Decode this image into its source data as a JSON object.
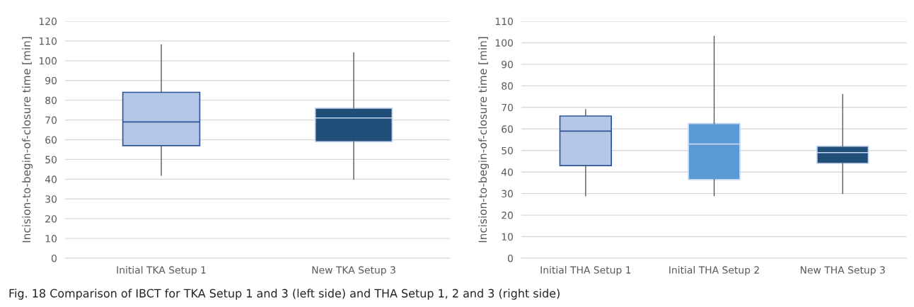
{
  "chart_data": [
    {
      "type": "box",
      "categories": [
        "Initial TKA Setup 1",
        "New TKA Setup 3"
      ],
      "ylabel": "Incision-to-begin-of-closure time [min]",
      "ylim": [
        0,
        120
      ],
      "yticks": [
        0,
        10,
        20,
        30,
        40,
        50,
        60,
        70,
        80,
        90,
        100,
        110,
        120
      ],
      "grid": "y",
      "colors": [
        "#b4c7e7",
        "#1f4e79"
      ],
      "boxes": [
        {
          "low": 42,
          "q1": 57,
          "median": 69,
          "q3": 84,
          "high": 108
        },
        {
          "low": 40,
          "q1": 59,
          "median": 71,
          "q3": 76,
          "high": 104
        }
      ],
      "annotations": [
        "Fig. 18 Comparison of IBCT for TKA Setup 1 and 3 (left side) and THA Setup 1, 2 and 3 (right side)"
      ]
    },
    {
      "type": "box",
      "categories": [
        "Initial THA Setup 1",
        "Initial THA Setup 2",
        "New THA Setup 3"
      ],
      "ylabel": "Incision-to-begin-of-closure time [min]",
      "ylim": [
        0,
        110
      ],
      "yticks": [
        0,
        10,
        20,
        30,
        40,
        50,
        60,
        70,
        80,
        90,
        100,
        110
      ],
      "grid": "y",
      "colors": [
        "#b4c7e7",
        "#5b9bd5",
        "#1f4e79"
      ],
      "boxes": [
        {
          "low": 29,
          "q1": 43,
          "median": 59,
          "q3": 66,
          "high": 69
        },
        {
          "low": 29,
          "q1": 36.5,
          "median": 53,
          "q3": 62.5,
          "high": 103
        },
        {
          "low": 30,
          "q1": 44,
          "median": 49,
          "q3": 52,
          "high": 76
        }
      ]
    }
  ]
}
